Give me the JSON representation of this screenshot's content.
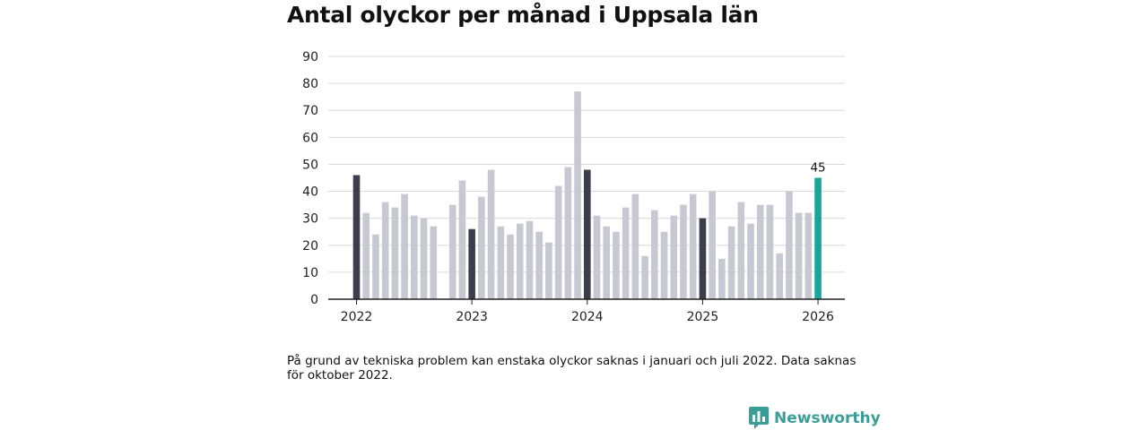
{
  "header": {
    "title": "Antal olyckor per månad i Uppsala län"
  },
  "colors": {
    "bar_default": "#c8c8d3",
    "bar_january": "#3e3d4d",
    "bar_latest": "#1aa59a",
    "grid": "#d9d9d9",
    "axis": "#222222",
    "brand": "#3a9e96"
  },
  "chart_data": {
    "type": "bar",
    "title": "Antal olyckor per månad i Uppsala län",
    "xlabel": "",
    "ylabel": "",
    "ylim": [
      0,
      90
    ],
    "yticks": [
      "0",
      "10",
      "20",
      "30",
      "40",
      "50",
      "60",
      "70",
      "80",
      "90"
    ],
    "xticks": [
      "2022",
      "2023",
      "2024",
      "2025",
      "2026"
    ],
    "grid": true,
    "series": [
      {
        "name": "Antal olyckor",
        "months": [
          "2022-01",
          "2022-02",
          "2022-03",
          "2022-04",
          "2022-05",
          "2022-06",
          "2022-07",
          "2022-08",
          "2022-09",
          "2022-10",
          "2022-11",
          "2022-12",
          "2023-01",
          "2023-02",
          "2023-03",
          "2023-04",
          "2023-05",
          "2023-06",
          "2023-07",
          "2023-08",
          "2023-09",
          "2023-10",
          "2023-11",
          "2023-12",
          "2024-01",
          "2024-02",
          "2024-03",
          "2024-04",
          "2024-05",
          "2024-06",
          "2024-07",
          "2024-08",
          "2024-09",
          "2024-10",
          "2024-11",
          "2024-12",
          "2025-01",
          "2025-02",
          "2025-03",
          "2025-04",
          "2025-05",
          "2025-06",
          "2025-07",
          "2025-08",
          "2025-09",
          "2025-10",
          "2025-11",
          "2025-12",
          "2026-01"
        ],
        "values": [
          46,
          32,
          24,
          36,
          34,
          39,
          31,
          30,
          27,
          null,
          35,
          44,
          26,
          38,
          48,
          27,
          24,
          28,
          29,
          25,
          21,
          42,
          49,
          77,
          48,
          31,
          27,
          25,
          34,
          39,
          16,
          33,
          25,
          31,
          35,
          39,
          30,
          40,
          15,
          27,
          36,
          28,
          35,
          35,
          17,
          40,
          32,
          32,
          45
        ]
      }
    ],
    "annotations": [
      {
        "month": "2026-01",
        "label": "45"
      }
    ]
  },
  "footer": {
    "note": "På grund av tekniska problem kan enstaka olyckor saknas i januari och juli 2022. Data saknas för oktober 2022.",
    "brand": "Newsworthy"
  }
}
